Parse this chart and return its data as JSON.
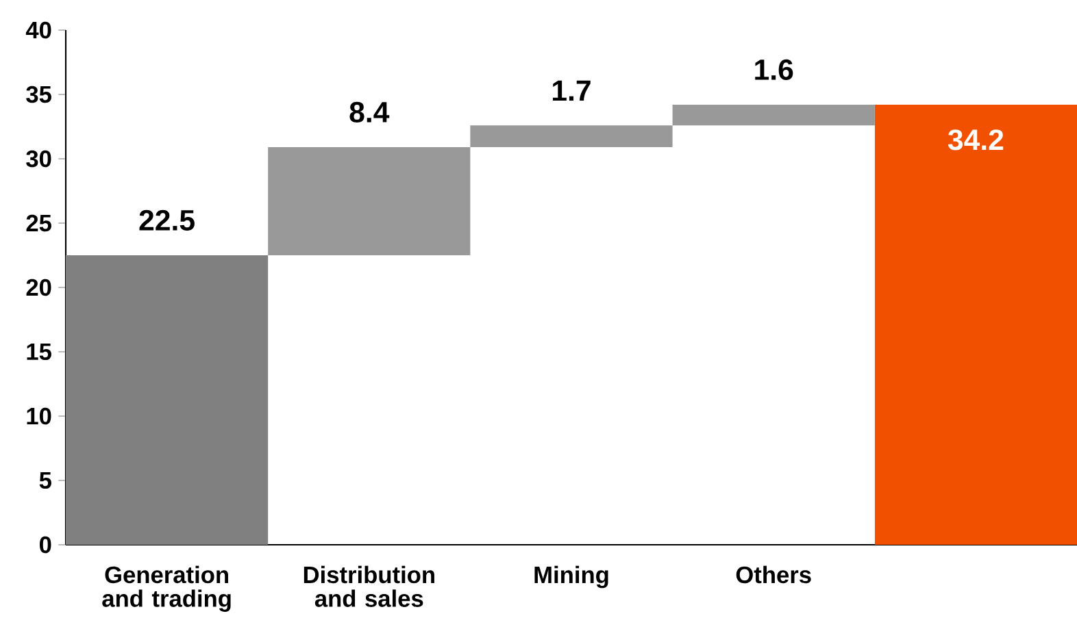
{
  "chart_data": {
    "type": "bar",
    "categories": [
      "Generation and trading",
      "Distribution and sales",
      "Mining",
      "Others",
      null
    ],
    "values": [
      22.5,
      8.4,
      1.7,
      1.6,
      34.2
    ],
    "base": [
      0,
      22.5,
      30.9,
      32.6,
      0
    ],
    "colors": [
      "#808080",
      "#999999",
      "#999999",
      "#999999",
      "#f05000"
    ],
    "data_labels": true,
    "ylim": [
      0,
      40
    ],
    "yticks": [
      0,
      5,
      10,
      15,
      20,
      25,
      30,
      35,
      40
    ],
    "grid": false
  }
}
